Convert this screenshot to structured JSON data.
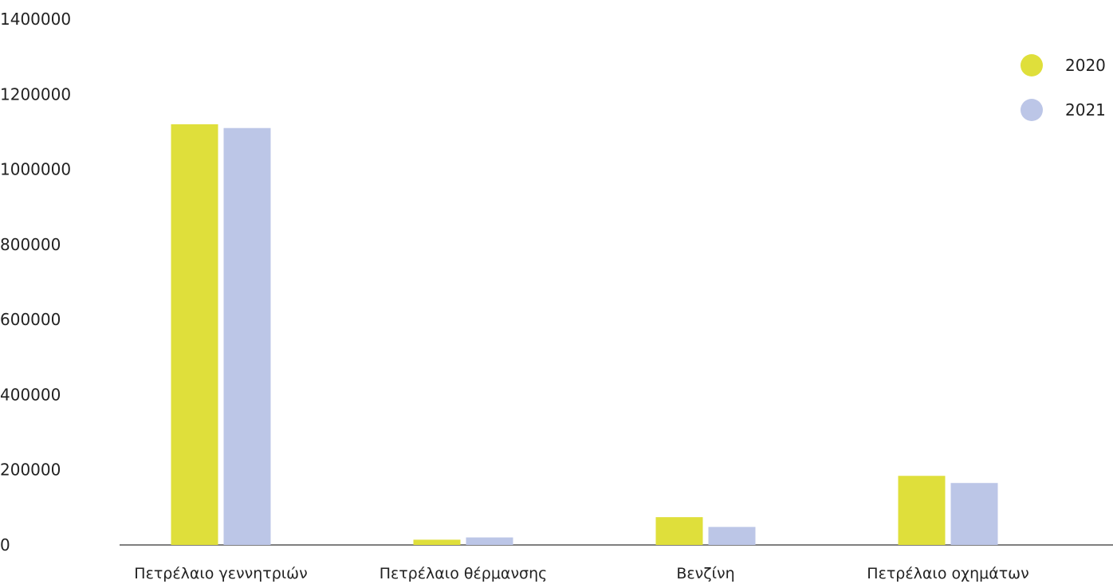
{
  "chart_data": {
    "type": "bar",
    "categories": [
      "Πετρέλαιο γεννητριών",
      "Πετρέλαιο θέρμανσης",
      "Βενζίνη",
      "Πετρέλαιο οχημάτων"
    ],
    "series": [
      {
        "name": "2020",
        "values": [
          1120000,
          14000,
          74000,
          184000
        ],
        "color": "#dfdf3b"
      },
      {
        "name": "2021",
        "values": [
          1110000,
          20000,
          48000,
          165000
        ],
        "color": "#bcc6e7"
      }
    ],
    "yticks": [
      "0",
      "200000",
      "400000",
      "600000",
      "800000",
      "1000000",
      "1200000",
      "1400000"
    ],
    "ylim": [
      0,
      1400000
    ],
    "title": "",
    "xlabel": "",
    "ylabel": "",
    "grid": false,
    "legend_position": "top-right"
  }
}
